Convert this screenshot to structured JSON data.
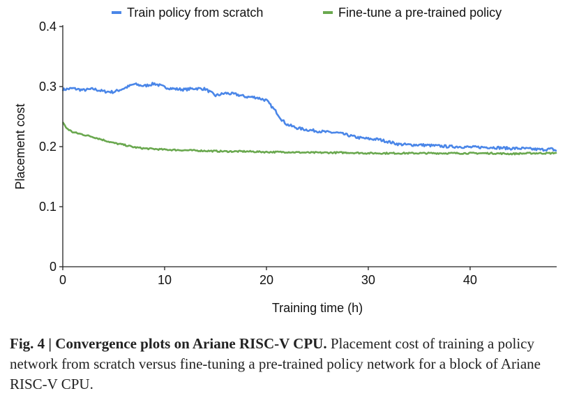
{
  "chart_data": {
    "type": "line",
    "xlabel": "Training time (h)",
    "ylabel": "Placement cost",
    "xlim": [
      0,
      48.5
    ],
    "ylim": [
      0,
      0.4
    ],
    "xticks": [
      0,
      10,
      20,
      30,
      40
    ],
    "yticks": [
      0,
      0.1,
      0.2,
      0.3,
      0.4
    ],
    "xtick_labels": [
      "0",
      "10",
      "20",
      "30",
      "40"
    ],
    "ytick_labels": [
      "0",
      "0.1",
      "0.2",
      "0.3",
      "0.4"
    ],
    "grid": false,
    "legend": "top",
    "series": [
      {
        "name": "Train policy from scratch",
        "color": "#4a86e8",
        "x": [
          0,
          1,
          2,
          3,
          4,
          5,
          6,
          7,
          8,
          9,
          10,
          11,
          12,
          13,
          14,
          15,
          16,
          17,
          18,
          19,
          20,
          20.5,
          21,
          21.5,
          22,
          23,
          24,
          25,
          26,
          27,
          28,
          29,
          30,
          31,
          32,
          33,
          34,
          35,
          36,
          37,
          38,
          39,
          40,
          41,
          42,
          43,
          44,
          45,
          46,
          47,
          48,
          48.5
        ],
        "y": [
          0.295,
          0.297,
          0.294,
          0.296,
          0.292,
          0.291,
          0.297,
          0.304,
          0.301,
          0.305,
          0.299,
          0.296,
          0.295,
          0.297,
          0.296,
          0.285,
          0.289,
          0.287,
          0.283,
          0.282,
          0.277,
          0.267,
          0.257,
          0.245,
          0.237,
          0.231,
          0.228,
          0.226,
          0.224,
          0.223,
          0.219,
          0.215,
          0.213,
          0.212,
          0.208,
          0.204,
          0.203,
          0.203,
          0.202,
          0.201,
          0.2,
          0.2,
          0.199,
          0.199,
          0.199,
          0.198,
          0.197,
          0.197,
          0.196,
          0.195,
          0.196,
          0.193
        ]
      },
      {
        "name": "Fine-tune a pre-trained policy",
        "color": "#6aa84f",
        "x": [
          0,
          0.3,
          0.6,
          1,
          1.5,
          2,
          2.5,
          3,
          4,
          5,
          6,
          7,
          8,
          9,
          10,
          12,
          14,
          16,
          18,
          20,
          22,
          24,
          26,
          28,
          30,
          32,
          34,
          36,
          38,
          40,
          42,
          44,
          46,
          48,
          48.5
        ],
        "y": [
          0.241,
          0.232,
          0.228,
          0.224,
          0.222,
          0.22,
          0.218,
          0.216,
          0.211,
          0.206,
          0.203,
          0.199,
          0.197,
          0.196,
          0.195,
          0.194,
          0.193,
          0.192,
          0.192,
          0.191,
          0.191,
          0.19,
          0.19,
          0.19,
          0.189,
          0.189,
          0.189,
          0.189,
          0.189,
          0.189,
          0.189,
          0.188,
          0.189,
          0.189,
          0.19
        ]
      }
    ]
  },
  "caption": {
    "fig_num": "Fig. 4 | ",
    "title": "Convergence plots on Ariane RISC-V CPU.",
    "body": " Placement cost of training a policy network from scratch versus fine-tuning a pre-trained policy network for a block of Ariane RISC-V CPU."
  }
}
